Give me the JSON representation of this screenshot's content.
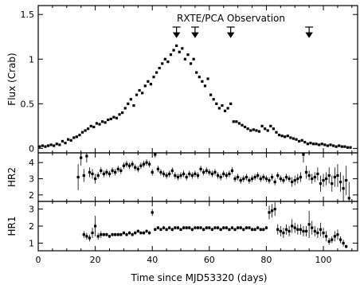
{
  "chart_data": {
    "type": "scatter",
    "x_axis": {
      "label": "Time since MJD53320 (days)",
      "range": [
        0,
        112
      ],
      "ticks": [
        0,
        20,
        40,
        60,
        80,
        100
      ]
    },
    "annotation": {
      "text": "RXTE/PCA Observation",
      "arrow_days": [
        48.5,
        55,
        67.5,
        95
      ]
    },
    "panels": [
      {
        "name": "flux",
        "ylabel": "Flux (Crab)",
        "ylim": [
          -0.05,
          1.6
        ],
        "yticks": [
          0,
          0.5,
          1,
          1.5
        ],
        "series": [
          {
            "x": [
              0.5,
              1.5,
              2.5,
              3.5,
              4.5,
              5.5,
              6.5,
              7.5,
              8.5,
              9.5,
              10.5,
              11.5,
              12.5,
              13.5,
              14.5,
              15.5,
              16.5,
              17.5,
              18.5,
              19.5,
              20.5,
              21.5,
              22.5,
              23.5,
              24.5,
              25.5,
              26.5,
              27.5,
              28.5,
              29.5,
              30.5,
              31.5,
              32.5,
              33.5,
              34.5,
              35.5,
              36.5,
              37.5,
              38.5,
              39.5,
              40.5,
              41.5,
              42.5,
              43.5,
              44.5,
              45.5,
              46.5,
              47.5,
              48.5,
              49.5,
              50.5,
              51.5,
              52.5,
              53.5,
              54.5,
              55.5,
              56.5,
              57.5,
              58.5,
              59.5,
              60.5,
              61.5,
              62.5,
              63.5,
              64.5,
              65.5,
              66.5,
              67.5,
              68.5,
              69.5,
              70.5,
              71.5,
              72.5,
              73.5,
              74.5,
              75.5,
              76.5,
              77.5,
              78.5,
              79.5,
              80.5,
              81.5,
              82.5,
              83.5,
              84.5,
              85.5,
              86.5,
              87.5,
              88.5,
              89.5,
              90.5,
              91.5,
              92.5,
              93.5,
              94.5,
              95.5,
              96.5,
              97.5,
              98.5,
              99.5,
              100.5,
              101.5,
              102.5,
              103.5,
              104.5,
              105.5,
              106.5,
              107.5,
              108.5,
              109.5
            ],
            "y": [
              0.02,
              0.03,
              0.02,
              0.03,
              0.04,
              0.03,
              0.05,
              0.04,
              0.08,
              0.06,
              0.1,
              0.09,
              0.12,
              0.13,
              0.15,
              0.18,
              0.2,
              0.22,
              0.25,
              0.24,
              0.28,
              0.27,
              0.3,
              0.29,
              0.32,
              0.33,
              0.35,
              0.34,
              0.38,
              0.4,
              0.45,
              0.5,
              0.55,
              0.48,
              0.6,
              0.65,
              0.62,
              0.7,
              0.75,
              0.72,
              0.8,
              0.85,
              0.9,
              0.95,
              1.0,
              0.97,
              1.05,
              1.1,
              1.15,
              1.08,
              1.12,
              1.0,
              1.05,
              0.95,
              1.0,
              0.85,
              0.8,
              0.75,
              0.7,
              0.78,
              0.6,
              0.55,
              0.5,
              0.45,
              0.48,
              0.42,
              0.45,
              0.5,
              0.3,
              0.3,
              0.28,
              0.26,
              0.24,
              0.22,
              0.2,
              0.21,
              0.2,
              0.19,
              0.25,
              0.22,
              0.2,
              0.25,
              0.22,
              0.18,
              0.15,
              0.14,
              0.13,
              0.14,
              0.12,
              0.11,
              0.1,
              0.08,
              0.09,
              0.07,
              0.05,
              0.06,
              0.05,
              0.05,
              0.04,
              0.05,
              0.04,
              0.03,
              0.04,
              0.03,
              0.02,
              0.03,
              0.02,
              0.02,
              0.01,
              0.01
            ]
          }
        ]
      },
      {
        "name": "HR2",
        "ylabel": "HR2",
        "ylim": [
          1.6,
          4.6
        ],
        "yticks": [
          2,
          3,
          4
        ],
        "series": [
          {
            "x": [
              14,
              15,
              16,
              17,
              18,
              19,
              20,
              21,
              22,
              23,
              24,
              25,
              26,
              27,
              28,
              29,
              30,
              31,
              32,
              33,
              34,
              35,
              36,
              37,
              38,
              39,
              40,
              41,
              42,
              43,
              44,
              45,
              46,
              47,
              48,
              49,
              50,
              51,
              52,
              53,
              54,
              55,
              56,
              57,
              58,
              59,
              60,
              61,
              62,
              63,
              64,
              65,
              66,
              67,
              68,
              69,
              70,
              71,
              72,
              73,
              74,
              75,
              76,
              77,
              78,
              79,
              80,
              81,
              82,
              83,
              84,
              85,
              86,
              87,
              88,
              89,
              90,
              91,
              92,
              93,
              94,
              95,
              96,
              97,
              98,
              99,
              100,
              101,
              102,
              103,
              104,
              105,
              106,
              107,
              108,
              109
            ],
            "y": [
              3.1,
              4.3,
              3.2,
              4.4,
              3.4,
              3.3,
              3.0,
              3.2,
              3.5,
              3.3,
              3.4,
              3.3,
              3.5,
              3.4,
              3.6,
              3.5,
              3.8,
              3.9,
              3.8,
              3.9,
              3.7,
              3.6,
              3.8,
              3.9,
              4.0,
              3.9,
              3.4,
              4.5,
              3.6,
              3.4,
              3.3,
              3.2,
              3.3,
              3.5,
              3.2,
              3.1,
              3.2,
              3.3,
              3.1,
              3.3,
              3.2,
              3.3,
              3.2,
              3.6,
              3.4,
              3.5,
              3.4,
              3.3,
              3.4,
              3.2,
              3.1,
              3.3,
              3.2,
              3.3,
              3.5,
              3.0,
              3.1,
              2.9,
              3.0,
              3.1,
              2.9,
              3.0,
              3.1,
              3.2,
              3.0,
              3.1,
              3.0,
              2.9,
              3.1,
              2.8,
              3.2,
              3.0,
              2.9,
              3.1,
              3.0,
              2.8,
              2.9,
              3.0,
              3.1,
              4.5,
              3.4,
              3.2,
              3.0,
              3.1,
              3.3,
              2.7,
              2.9,
              3.0,
              3.2,
              2.7,
              3.1,
              3.2,
              2.8,
              2.4,
              2.9,
              1.8
            ],
            "err": [
              0.8,
              0.5,
              0.4,
              0.4,
              0.3,
              0.3,
              0.3,
              0.2,
              0.2,
              0.2,
              0.2,
              0.2,
              0.2,
              0.2,
              0.2,
              0.2,
              0.2,
              0.2,
              0.2,
              0.2,
              0.2,
              0.2,
              0.2,
              0.2,
              0.2,
              0.2,
              0.2,
              0.2,
              0.2,
              0.2,
              0.2,
              0.2,
              0.2,
              0.2,
              0.2,
              0.2,
              0.2,
              0.2,
              0.2,
              0.2,
              0.2,
              0.2,
              0.2,
              0.2,
              0.2,
              0.2,
              0.2,
              0.2,
              0.2,
              0.2,
              0.2,
              0.2,
              0.2,
              0.2,
              0.2,
              0.2,
              0.2,
              0.2,
              0.2,
              0.2,
              0.2,
              0.2,
              0.2,
              0.2,
              0.2,
              0.2,
              0.2,
              0.2,
              0.2,
              0.2,
              0.2,
              0.2,
              0.2,
              0.2,
              0.2,
              0.3,
              0.3,
              0.3,
              0.3,
              0.5,
              0.4,
              0.3,
              0.3,
              0.3,
              0.4,
              0.5,
              0.4,
              0.4,
              0.5,
              0.5,
              0.6,
              0.7,
              0.6,
              0.8,
              0.9,
              1.0
            ]
          }
        ]
      },
      {
        "name": "HR1",
        "ylabel": "HR1",
        "ylim": [
          0.55,
          3.45
        ],
        "yticks": [
          1,
          2,
          3
        ],
        "series": [
          {
            "x": [
              16,
              17,
              18,
              19,
              20,
              21,
              22,
              23,
              24,
              25,
              26,
              27,
              28,
              29,
              30,
              31,
              32,
              33,
              34,
              35,
              36,
              37,
              38,
              39,
              40,
              41,
              42,
              43,
              44,
              45,
              46,
              47,
              48,
              49,
              50,
              51,
              52,
              53,
              54,
              55,
              56,
              57,
              58,
              59,
              60,
              61,
              62,
              63,
              64,
              65,
              66,
              67,
              68,
              69,
              70,
              71,
              72,
              73,
              74,
              75,
              76,
              77,
              78,
              79,
              80,
              81,
              82,
              83,
              84,
              85,
              86,
              87,
              88,
              89,
              90,
              91,
              92,
              93,
              94,
              95,
              96,
              97,
              98,
              99,
              100,
              101,
              102,
              103,
              104,
              105,
              106,
              107,
              108
            ],
            "y": [
              1.5,
              1.4,
              1.3,
              1.6,
              2.0,
              1.4,
              1.5,
              1.5,
              1.5,
              1.4,
              1.5,
              1.5,
              1.5,
              1.5,
              1.6,
              1.5,
              1.6,
              1.5,
              1.6,
              1.7,
              1.6,
              1.6,
              1.7,
              1.6,
              2.8,
              1.8,
              1.9,
              1.8,
              1.9,
              1.8,
              1.9,
              1.8,
              1.9,
              1.9,
              1.8,
              1.9,
              1.9,
              1.9,
              1.8,
              1.9,
              1.9,
              1.9,
              1.8,
              1.9,
              1.9,
              1.8,
              1.9,
              1.9,
              1.8,
              1.9,
              1.9,
              1.8,
              1.9,
              1.8,
              1.9,
              1.9,
              1.8,
              1.9,
              1.9,
              1.8,
              1.8,
              1.9,
              1.8,
              1.8,
              1.9,
              2.8,
              2.9,
              3.0,
              1.8,
              1.7,
              1.6,
              1.8,
              1.7,
              2.0,
              1.9,
              1.8,
              1.8,
              1.7,
              1.7,
              2.1,
              1.9,
              1.7,
              1.6,
              1.8,
              1.6,
              1.4,
              1.1,
              1.2,
              1.4,
              1.5,
              1.2,
              1.0,
              0.8
            ],
            "err": [
              0.2,
              0.2,
              0.2,
              0.3,
              0.6,
              0.2,
              0.2,
              0.1,
              0.1,
              0.1,
              0.1,
              0.1,
              0.1,
              0.1,
              0.1,
              0.1,
              0.1,
              0.1,
              0.1,
              0.1,
              0.1,
              0.1,
              0.1,
              0.1,
              0.2,
              0.1,
              0.1,
              0.1,
              0.1,
              0.1,
              0.1,
              0.1,
              0.1,
              0.1,
              0.1,
              0.1,
              0.1,
              0.1,
              0.1,
              0.1,
              0.1,
              0.1,
              0.1,
              0.1,
              0.1,
              0.1,
              0.1,
              0.1,
              0.1,
              0.1,
              0.1,
              0.1,
              0.1,
              0.1,
              0.1,
              0.1,
              0.1,
              0.1,
              0.1,
              0.1,
              0.1,
              0.1,
              0.1,
              0.1,
              0.1,
              0.4,
              0.4,
              0.4,
              0.3,
              0.3,
              0.3,
              0.3,
              0.3,
              0.4,
              0.3,
              0.3,
              0.3,
              0.3,
              0.3,
              0.8,
              0.4,
              0.3,
              0.3,
              0.4,
              0.3,
              0.3,
              0.2,
              0.2,
              0.3,
              0.3,
              0.2,
              0.2,
              0.1
            ]
          }
        ]
      }
    ]
  }
}
